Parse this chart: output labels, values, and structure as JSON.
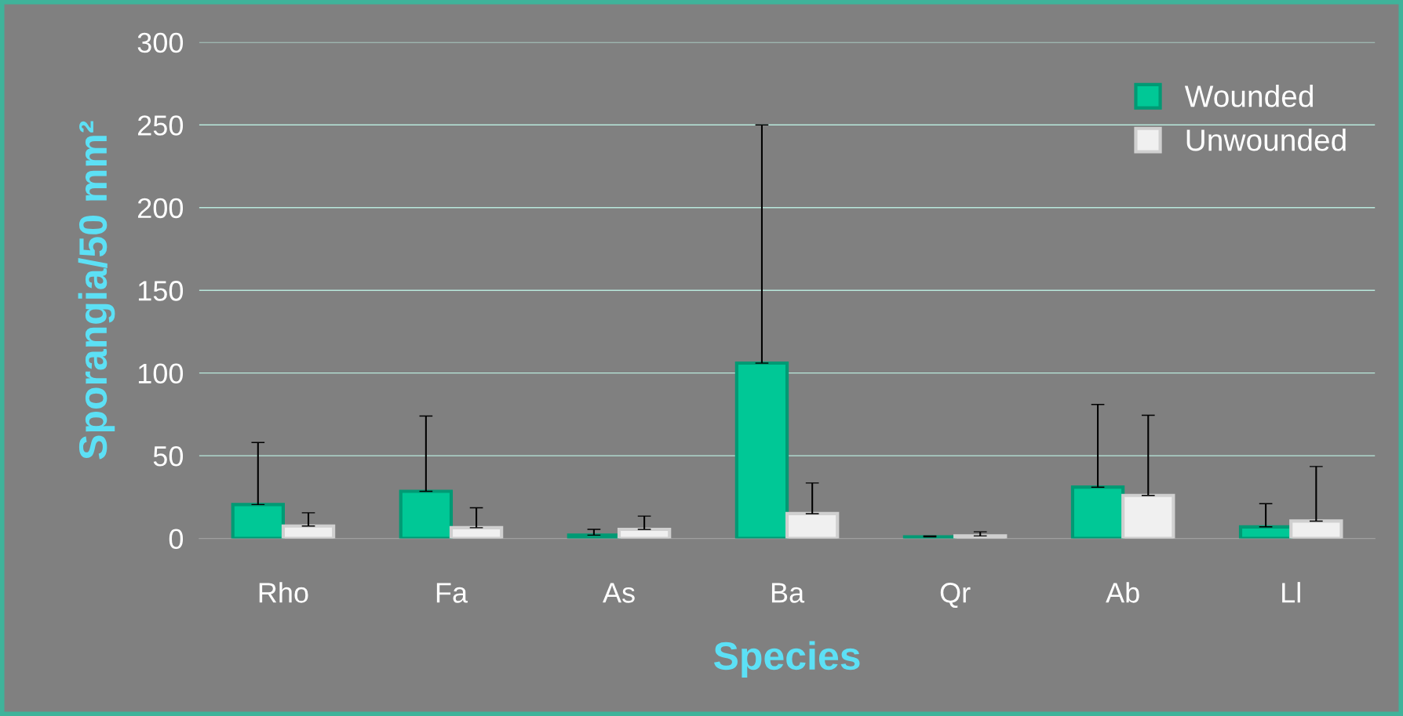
{
  "chart_data": {
    "type": "bar",
    "xlabel": "Species",
    "ylabel": "Sporangia/50 mm²",
    "categories": [
      "Rho",
      "Fa",
      "As",
      "Ba",
      "Qr",
      "Ab",
      "Ll"
    ],
    "series": [
      {
        "name": "Wounded",
        "color": "#00c896",
        "values": [
          20.5,
          28.5,
          2,
          106,
          1,
          31,
          7
        ],
        "errors": [
          [
            20.5,
            58
          ],
          [
            28.5,
            74
          ],
          [
            2,
            5.5
          ],
          [
            106,
            250
          ],
          [
            1,
            1.5
          ],
          [
            31,
            81
          ],
          [
            7,
            21
          ]
        ]
      },
      {
        "name": "Unwounded",
        "color": "#f0f0f0",
        "values": [
          7.5,
          6.5,
          5.5,
          15,
          1.5,
          26,
          10.5
        ],
        "errors": [
          [
            7.5,
            15.5
          ],
          [
            6.5,
            18.5
          ],
          [
            5.5,
            13.5
          ],
          [
            15,
            33.5
          ],
          [
            1.5,
            4
          ],
          [
            26,
            74.5
          ],
          [
            10.5,
            43.5
          ]
        ]
      }
    ],
    "ylim": [
      0,
      300
    ],
    "yticks": [
      0,
      50,
      100,
      150,
      200,
      250,
      300
    ],
    "grid": "y",
    "legend": "top right"
  }
}
